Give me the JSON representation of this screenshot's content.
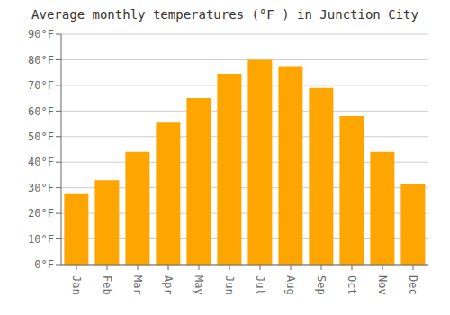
{
  "chart_data": {
    "type": "bar",
    "title": "Average monthly temperatures (°F ) in Junction City",
    "categories": [
      "Jan",
      "Feb",
      "Mar",
      "Apr",
      "May",
      "Jun",
      "Jul",
      "Aug",
      "Sep",
      "Oct",
      "Nov",
      "Dec"
    ],
    "values": [
      27.5,
      33,
      44,
      55.5,
      65,
      74.5,
      80,
      77.5,
      69,
      58,
      44,
      31.5
    ],
    "color": "#FFA500",
    "ylim": [
      0,
      90
    ],
    "yticks": [
      {
        "value": 0,
        "label": "0°F"
      },
      {
        "value": 10,
        "label": "10°F"
      },
      {
        "value": 20,
        "label": "20°F"
      },
      {
        "value": 30,
        "label": "30°F"
      },
      {
        "value": 40,
        "label": "40°F"
      },
      {
        "value": 50,
        "label": "50°F"
      },
      {
        "value": 60,
        "label": "60°F"
      },
      {
        "value": 70,
        "label": "70°F"
      },
      {
        "value": 80,
        "label": "80°F"
      },
      {
        "value": 90,
        "label": "90°F"
      }
    ],
    "grid": true
  }
}
